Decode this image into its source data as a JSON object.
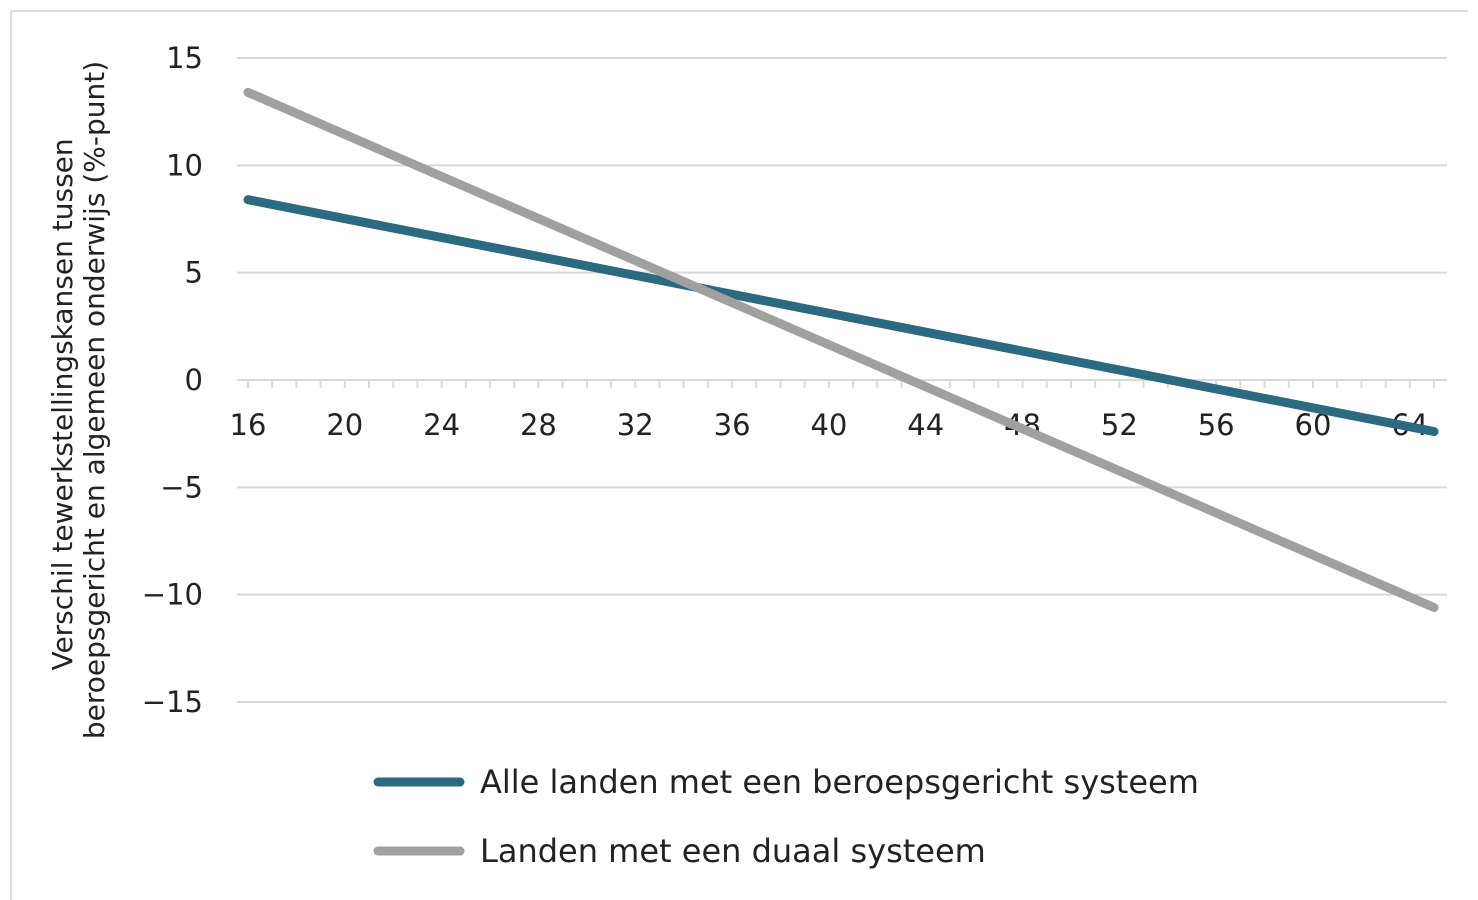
{
  "chart_data": {
    "type": "line",
    "title": "",
    "ylabel": [
      "Verschil tewerkstellingskansen tussen",
      "beroepsgericht en algemeen onderwijs (%-punt)"
    ],
    "xlabel": "",
    "xlim": [
      15.6,
      65.6
    ],
    "ylim": [
      -15,
      15
    ],
    "x_ticks": [
      16,
      20,
      24,
      28,
      32,
      36,
      40,
      44,
      48,
      52,
      56,
      60,
      64
    ],
    "y_ticks": [
      15,
      10,
      5,
      0,
      -5,
      -10,
      -15
    ],
    "grid": "horizontal",
    "legend_position": "bottom",
    "series": [
      {
        "name": "Alle landen met een beroepsgericht systeem",
        "color": "#2b6a80",
        "x": [
          16,
          65
        ],
        "y": [
          8.4,
          -2.4
        ]
      },
      {
        "name": "Landen met een duaal systeem",
        "color": "#a0a0a0",
        "x": [
          16,
          65
        ],
        "y": [
          13.4,
          -10.6
        ]
      }
    ]
  }
}
